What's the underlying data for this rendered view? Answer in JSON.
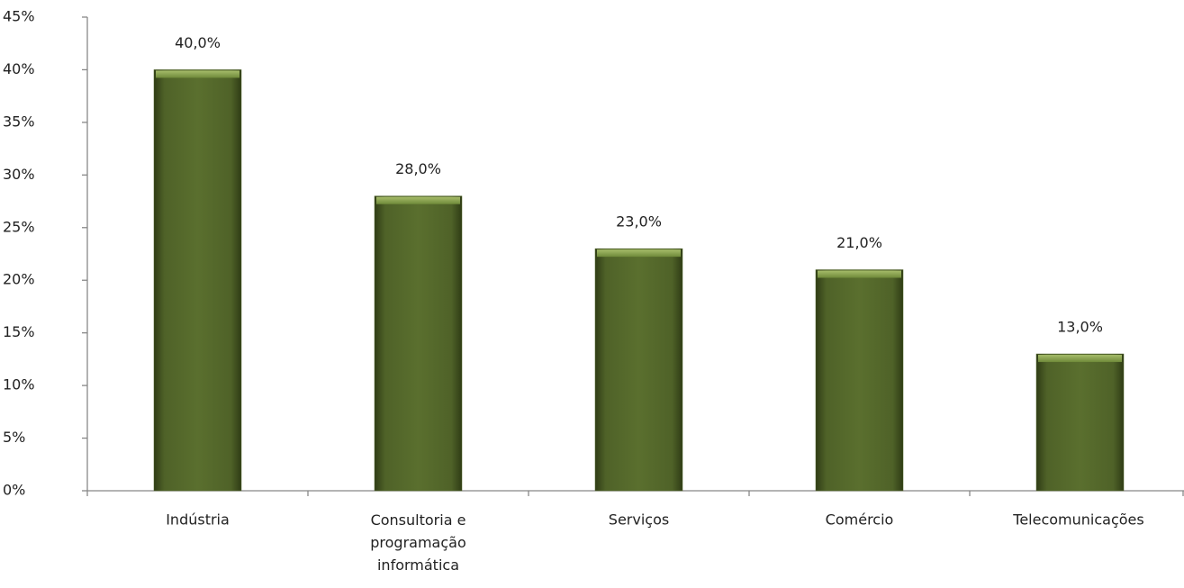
{
  "chart_data": {
    "type": "bar",
    "categories": [
      "Indústria",
      "Consultoria e programação informática",
      "Serviços",
      "Comércio",
      "Telecomunicações"
    ],
    "values": [
      40,
      28,
      23,
      21,
      13
    ],
    "value_labels": [
      "40,0%",
      "28,0%",
      "23,0%",
      "21,0%",
      "13,0%"
    ],
    "color": "#4f6228",
    "ylim": [
      0,
      45
    ],
    "yticks": [
      {
        "value": 0,
        "label": "0%"
      },
      {
        "value": 5,
        "label": "5%"
      },
      {
        "value": 10,
        "label": "10%"
      },
      {
        "value": 15,
        "label": "15%"
      },
      {
        "value": 20,
        "label": "20%"
      },
      {
        "value": 25,
        "label": "25%"
      },
      {
        "value": 30,
        "label": "30%"
      },
      {
        "value": 35,
        "label": "35%"
      },
      {
        "value": 40,
        "label": "40%"
      },
      {
        "value": 45,
        "label": "45%"
      }
    ],
    "grid": false
  }
}
